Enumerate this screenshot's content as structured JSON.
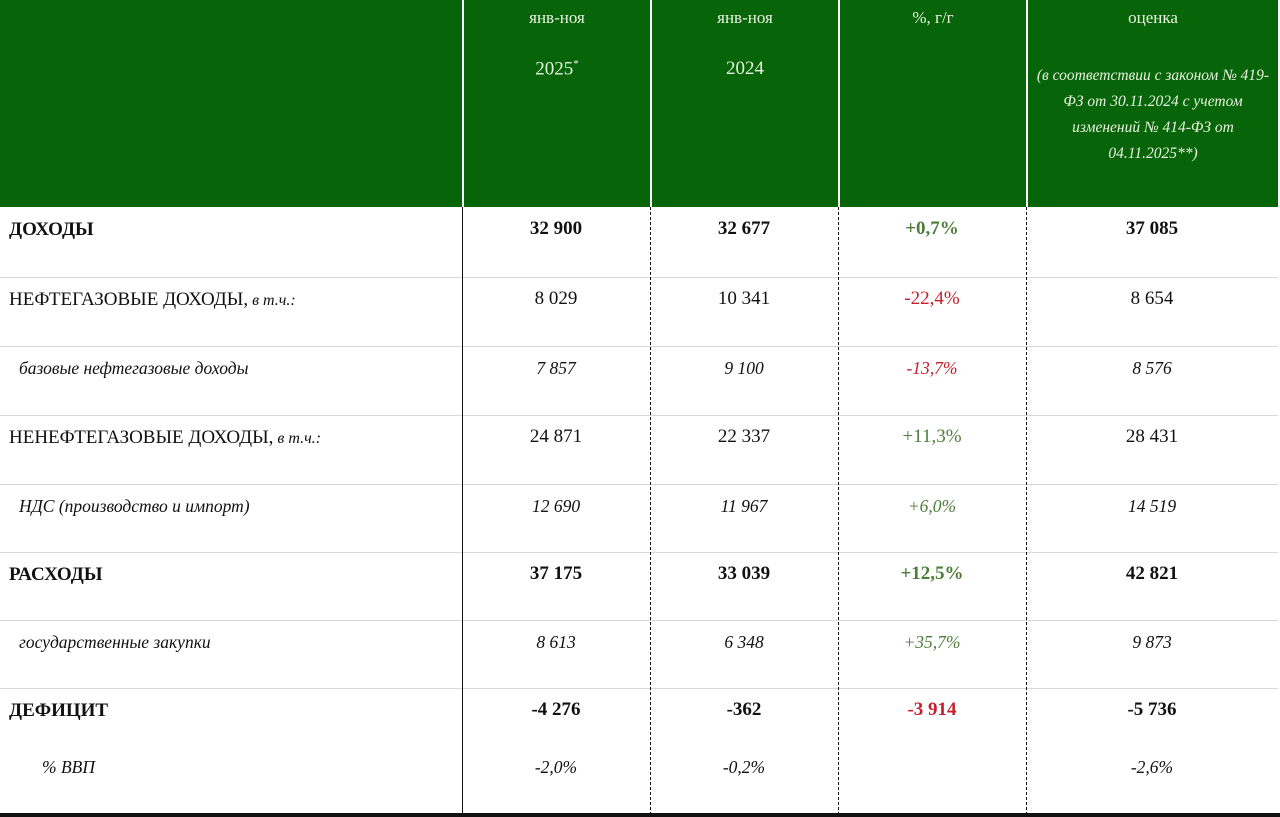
{
  "header": {
    "columns": [
      {
        "line1": "янв-ноя",
        "line2": "2025",
        "sup": "*"
      },
      {
        "line1": "янв-ноя",
        "line2": "2024"
      },
      {
        "line1": "%, г/г"
      },
      {
        "line1": "оценка",
        "note": "(в соответствии с законом № 419-ФЗ от 30.11.2024 с учетом изменений № 414-ФЗ от 04.11.2025**)"
      }
    ]
  },
  "colors": {
    "header_bg": "#086408",
    "positive": "#4e7d3a",
    "negative": "#c4202c"
  },
  "rows": [
    {
      "label": "ДОХОДЫ",
      "suffix": "",
      "v2025": "32 900",
      "v2024": "32 677",
      "yoy": "+0,7%",
      "est": "37 085",
      "style": "bold",
      "yoy_color": "positive"
    },
    {
      "label": "НЕФТЕГАЗОВЫЕ ДОХОДЫ,",
      "suffix": " в т.ч.:",
      "v2025": "8 029",
      "v2024": "10 341",
      "yoy": "-22,4%",
      "est": "8 654",
      "style": "normal",
      "yoy_color": "negative"
    },
    {
      "label": "базовые нефтегазовые доходы",
      "suffix": "",
      "v2025": "7 857",
      "v2024": "9 100",
      "yoy": "-13,7%",
      "est": "8 576",
      "style": "italic",
      "yoy_color": "negative"
    },
    {
      "label": "НЕНЕФТЕГАЗОВЫЕ ДОХОДЫ,",
      "suffix": " в т.ч.:",
      "v2025": "24 871",
      "v2024": "22 337",
      "yoy": "+11,3%",
      "est": "28 431",
      "style": "normal",
      "yoy_color": "positive"
    },
    {
      "label": "НДС (производство и импорт)",
      "suffix": "",
      "v2025": "12 690",
      "v2024": "11 967",
      "yoy": "+6,0%",
      "est": "14 519",
      "style": "italic",
      "yoy_color": "positive"
    },
    {
      "label": "РАСХОДЫ",
      "suffix": "",
      "v2025": "37 175",
      "v2024": "33 039",
      "yoy": "+12,5%",
      "est": "42 821",
      "style": "bold",
      "yoy_color": "positive"
    },
    {
      "label": "государственные закупки",
      "suffix": "",
      "v2025": "8 613",
      "v2024": "6 348",
      "yoy": "+35,7%",
      "est": "9 873",
      "style": "italic",
      "yoy_color": "positive"
    },
    {
      "label": "ДЕФИЦИТ",
      "suffix": "",
      "v2025": "-4 276",
      "v2024": "-362",
      "yoy": "-3 914",
      "est": "-5 736",
      "style": "bold",
      "yoy_color": "negative"
    },
    {
      "label": "% ВВП",
      "suffix": "",
      "v2025": "-2,0%",
      "v2024": "-0,2%",
      "yoy": "",
      "est": "-2,6%",
      "style": "italic",
      "yoy_color": ""
    }
  ]
}
